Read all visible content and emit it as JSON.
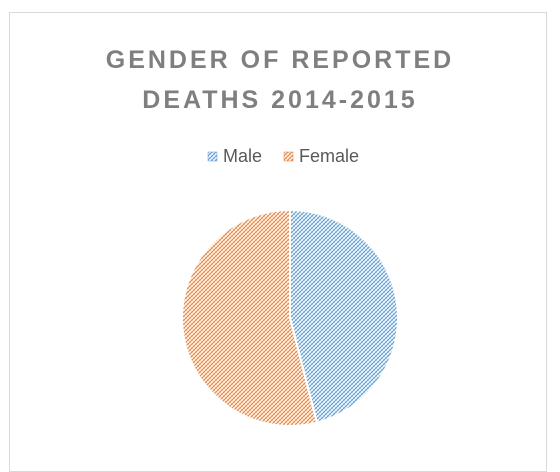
{
  "chart_data": {
    "type": "pie",
    "title": "GENDER OF REPORTED DEATHS 2014-2015",
    "categories": [
      "Male",
      "Female"
    ],
    "values": [
      46,
      54
    ],
    "colors": [
      "#5b9bd5",
      "#ed7d31"
    ],
    "legend": "top"
  }
}
